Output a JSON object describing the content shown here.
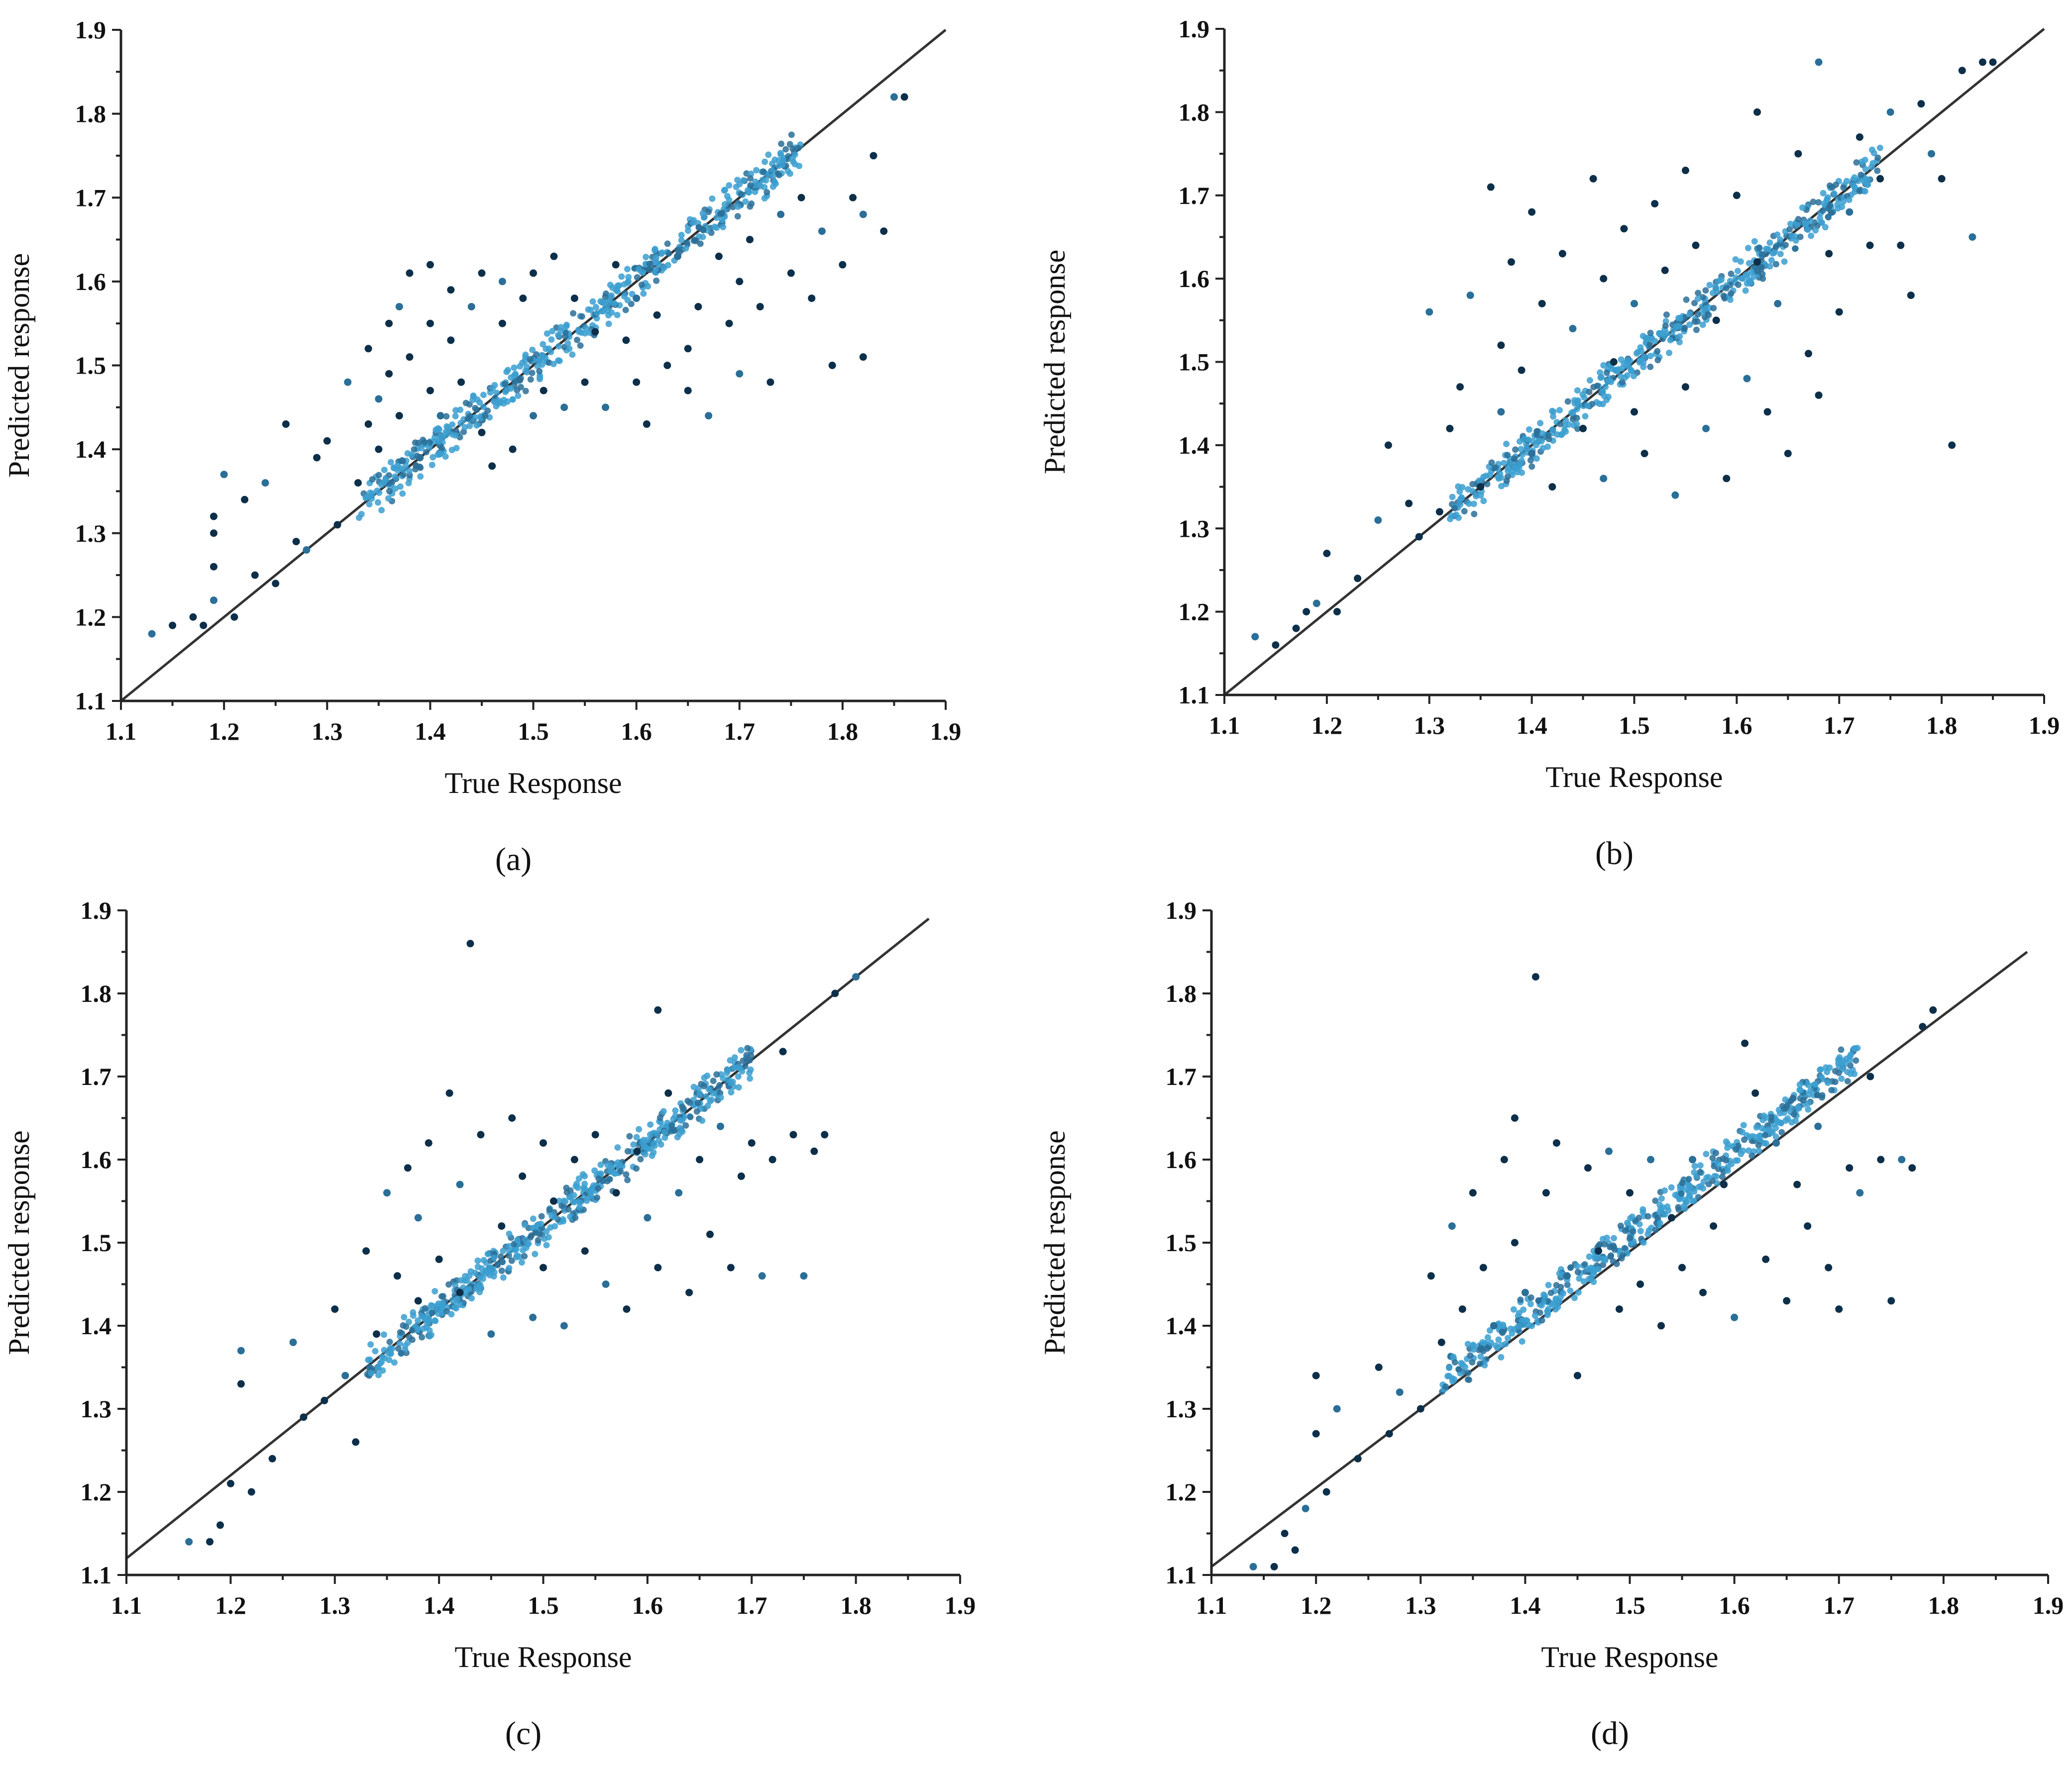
{
  "figure": {
    "panels": [
      "a",
      "b",
      "c",
      "d"
    ]
  },
  "colors": {
    "point_dark": "#0d2f4a",
    "point_mid": "#2a6f98",
    "point_light": "#3fa2cf",
    "band": "#3b9fd0",
    "reference_line": "#333333",
    "axis": "#222222"
  },
  "chart_data": [
    {
      "type": "scatter",
      "panel": "a",
      "caption": "(a)",
      "xlabel": "True Response",
      "ylabel": "Predicted response",
      "xlim": [
        1.1,
        1.9
      ],
      "ylim": [
        1.1,
        1.9
      ],
      "xticks": [
        "1.1",
        "1.2",
        "1.3",
        "1.4",
        "1.5",
        "1.6",
        "1.7",
        "1.8",
        "1.9"
      ],
      "yticks": [
        "1.1",
        "1.2",
        "1.3",
        "1.4",
        "1.5",
        "1.6",
        "1.7",
        "1.8",
        "1.9"
      ],
      "reference_line": [
        [
          1.1,
          1.1
        ],
        [
          1.9,
          1.9
        ]
      ],
      "band_range": [
        1.33,
        1.76
      ],
      "points": [
        [
          1.13,
          1.18
        ],
        [
          1.15,
          1.19
        ],
        [
          1.17,
          1.2
        ],
        [
          1.18,
          1.19
        ],
        [
          1.19,
          1.22
        ],
        [
          1.19,
          1.26
        ],
        [
          1.19,
          1.3
        ],
        [
          1.19,
          1.32
        ],
        [
          1.2,
          1.37
        ],
        [
          1.21,
          1.2
        ],
        [
          1.22,
          1.34
        ],
        [
          1.23,
          1.25
        ],
        [
          1.24,
          1.36
        ],
        [
          1.25,
          1.24
        ],
        [
          1.26,
          1.43
        ],
        [
          1.27,
          1.29
        ],
        [
          1.28,
          1.28
        ],
        [
          1.29,
          1.39
        ],
        [
          1.3,
          1.41
        ],
        [
          1.31,
          1.31
        ],
        [
          1.32,
          1.48
        ],
        [
          1.33,
          1.36
        ],
        [
          1.34,
          1.52
        ],
        [
          1.34,
          1.43
        ],
        [
          1.35,
          1.46
        ],
        [
          1.35,
          1.4
        ],
        [
          1.36,
          1.55
        ],
        [
          1.36,
          1.49
        ],
        [
          1.37,
          1.57
        ],
        [
          1.37,
          1.44
        ],
        [
          1.38,
          1.61
        ],
        [
          1.38,
          1.51
        ],
        [
          1.39,
          1.39
        ],
        [
          1.4,
          1.62
        ],
        [
          1.4,
          1.55
        ],
        [
          1.4,
          1.47
        ],
        [
          1.41,
          1.44
        ],
        [
          1.42,
          1.59
        ],
        [
          1.42,
          1.53
        ],
        [
          1.43,
          1.48
        ],
        [
          1.44,
          1.57
        ],
        [
          1.45,
          1.42
        ],
        [
          1.45,
          1.61
        ],
        [
          1.46,
          1.38
        ],
        [
          1.47,
          1.6
        ],
        [
          1.47,
          1.55
        ],
        [
          1.48,
          1.4
        ],
        [
          1.49,
          1.58
        ],
        [
          1.5,
          1.44
        ],
        [
          1.5,
          1.61
        ],
        [
          1.51,
          1.47
        ],
        [
          1.52,
          1.63
        ],
        [
          1.53,
          1.45
        ],
        [
          1.54,
          1.58
        ],
        [
          1.55,
          1.48
        ],
        [
          1.56,
          1.54
        ],
        [
          1.57,
          1.45
        ],
        [
          1.58,
          1.62
        ],
        [
          1.59,
          1.53
        ],
        [
          1.6,
          1.48
        ],
        [
          1.6,
          1.58
        ],
        [
          1.61,
          1.43
        ],
        [
          1.62,
          1.56
        ],
        [
          1.63,
          1.5
        ],
        [
          1.64,
          1.63
        ],
        [
          1.65,
          1.52
        ],
        [
          1.65,
          1.47
        ],
        [
          1.66,
          1.57
        ],
        [
          1.67,
          1.44
        ],
        [
          1.68,
          1.63
        ],
        [
          1.69,
          1.55
        ],
        [
          1.7,
          1.6
        ],
        [
          1.7,
          1.49
        ],
        [
          1.71,
          1.65
        ],
        [
          1.72,
          1.57
        ],
        [
          1.73,
          1.48
        ],
        [
          1.74,
          1.68
        ],
        [
          1.75,
          1.61
        ],
        [
          1.76,
          1.7
        ],
        [
          1.77,
          1.58
        ],
        [
          1.78,
          1.66
        ],
        [
          1.79,
          1.5
        ],
        [
          1.8,
          1.62
        ],
        [
          1.81,
          1.7
        ],
        [
          1.82,
          1.68
        ],
        [
          1.82,
          1.51
        ],
        [
          1.83,
          1.75
        ],
        [
          1.84,
          1.66
        ],
        [
          1.85,
          1.82
        ],
        [
          1.86,
          1.82
        ]
      ]
    },
    {
      "type": "scatter",
      "panel": "b",
      "caption": "(b)",
      "xlabel": "True Response",
      "ylabel": "Predicted response",
      "xlim": [
        1.1,
        1.9
      ],
      "ylim": [
        1.1,
        1.9
      ],
      "xticks": [
        "1.1",
        "1.2",
        "1.3",
        "1.4",
        "1.5",
        "1.6",
        "1.7",
        "1.8",
        "1.9"
      ],
      "yticks": [
        "1.1",
        "1.2",
        "1.3",
        "1.4",
        "1.5",
        "1.6",
        "1.7",
        "1.8",
        "1.9"
      ],
      "reference_line": [
        [
          1.1,
          1.1
        ],
        [
          1.9,
          1.9
        ]
      ],
      "band_range": [
        1.32,
        1.74
      ],
      "points": [
        [
          1.13,
          1.17
        ],
        [
          1.15,
          1.16
        ],
        [
          1.17,
          1.18
        ],
        [
          1.18,
          1.2
        ],
        [
          1.19,
          1.21
        ],
        [
          1.2,
          1.27
        ],
        [
          1.21,
          1.2
        ],
        [
          1.23,
          1.24
        ],
        [
          1.25,
          1.31
        ],
        [
          1.26,
          1.4
        ],
        [
          1.28,
          1.33
        ],
        [
          1.29,
          1.29
        ],
        [
          1.3,
          1.56
        ],
        [
          1.31,
          1.32
        ],
        [
          1.32,
          1.42
        ],
        [
          1.33,
          1.47
        ],
        [
          1.34,
          1.58
        ],
        [
          1.35,
          1.35
        ],
        [
          1.36,
          1.71
        ],
        [
          1.37,
          1.52
        ],
        [
          1.37,
          1.44
        ],
        [
          1.38,
          1.62
        ],
        [
          1.39,
          1.49
        ],
        [
          1.4,
          1.68
        ],
        [
          1.4,
          1.39
        ],
        [
          1.41,
          1.57
        ],
        [
          1.42,
          1.35
        ],
        [
          1.43,
          1.63
        ],
        [
          1.44,
          1.54
        ],
        [
          1.45,
          1.42
        ],
        [
          1.46,
          1.72
        ],
        [
          1.47,
          1.6
        ],
        [
          1.47,
          1.36
        ],
        [
          1.48,
          1.5
        ],
        [
          1.49,
          1.66
        ],
        [
          1.5,
          1.44
        ],
        [
          1.5,
          1.57
        ],
        [
          1.51,
          1.39
        ],
        [
          1.52,
          1.69
        ],
        [
          1.53,
          1.61
        ],
        [
          1.54,
          1.34
        ],
        [
          1.55,
          1.73
        ],
        [
          1.55,
          1.47
        ],
        [
          1.56,
          1.64
        ],
        [
          1.57,
          1.42
        ],
        [
          1.58,
          1.55
        ],
        [
          1.59,
          1.36
        ],
        [
          1.6,
          1.7
        ],
        [
          1.61,
          1.48
        ],
        [
          1.62,
          1.8
        ],
        [
          1.62,
          1.62
        ],
        [
          1.63,
          1.44
        ],
        [
          1.64,
          1.57
        ],
        [
          1.65,
          1.39
        ],
        [
          1.66,
          1.75
        ],
        [
          1.67,
          1.51
        ],
        [
          1.68,
          1.86
        ],
        [
          1.68,
          1.46
        ],
        [
          1.69,
          1.63
        ],
        [
          1.7,
          1.56
        ],
        [
          1.71,
          1.68
        ],
        [
          1.72,
          1.77
        ],
        [
          1.73,
          1.64
        ],
        [
          1.74,
          1.72
        ],
        [
          1.75,
          1.8
        ],
        [
          1.76,
          1.64
        ],
        [
          1.77,
          1.58
        ],
        [
          1.78,
          1.81
        ],
        [
          1.79,
          1.75
        ],
        [
          1.8,
          1.72
        ],
        [
          1.81,
          1.4
        ],
        [
          1.82,
          1.85
        ],
        [
          1.83,
          1.65
        ],
        [
          1.84,
          1.86
        ],
        [
          1.85,
          1.86
        ]
      ]
    },
    {
      "type": "scatter",
      "panel": "c",
      "caption": "(c)",
      "xlabel": "True Response",
      "ylabel": "Predicted response",
      "xlim": [
        1.1,
        1.9
      ],
      "ylim": [
        1.1,
        1.9
      ],
      "xticks": [
        "1.1",
        "1.2",
        "1.3",
        "1.4",
        "1.5",
        "1.6",
        "1.7",
        "1.8",
        "1.9"
      ],
      "yticks": [
        "1.1",
        "1.2",
        "1.3",
        "1.4",
        "1.5",
        "1.6",
        "1.7",
        "1.8",
        "1.9"
      ],
      "reference_line": [
        [
          1.1,
          1.12
        ],
        [
          1.87,
          1.89
        ]
      ],
      "band_range": [
        1.33,
        1.7
      ],
      "points": [
        [
          1.16,
          1.14
        ],
        [
          1.18,
          1.14
        ],
        [
          1.19,
          1.16
        ],
        [
          1.2,
          1.21
        ],
        [
          1.21,
          1.37
        ],
        [
          1.21,
          1.33
        ],
        [
          1.22,
          1.2
        ],
        [
          1.24,
          1.24
        ],
        [
          1.26,
          1.38
        ],
        [
          1.27,
          1.29
        ],
        [
          1.29,
          1.31
        ],
        [
          1.3,
          1.42
        ],
        [
          1.31,
          1.34
        ],
        [
          1.32,
          1.26
        ],
        [
          1.33,
          1.49
        ],
        [
          1.34,
          1.39
        ],
        [
          1.35,
          1.56
        ],
        [
          1.36,
          1.46
        ],
        [
          1.37,
          1.59
        ],
        [
          1.38,
          1.43
        ],
        [
          1.38,
          1.53
        ],
        [
          1.39,
          1.62
        ],
        [
          1.4,
          1.48
        ],
        [
          1.41,
          1.68
        ],
        [
          1.42,
          1.57
        ],
        [
          1.42,
          1.44
        ],
        [
          1.43,
          1.86
        ],
        [
          1.44,
          1.63
        ],
        [
          1.45,
          1.39
        ],
        [
          1.46,
          1.52
        ],
        [
          1.47,
          1.65
        ],
        [
          1.48,
          1.58
        ],
        [
          1.49,
          1.41
        ],
        [
          1.5,
          1.62
        ],
        [
          1.5,
          1.47
        ],
        [
          1.51,
          1.55
        ],
        [
          1.52,
          1.4
        ],
        [
          1.53,
          1.6
        ],
        [
          1.54,
          1.49
        ],
        [
          1.55,
          1.63
        ],
        [
          1.56,
          1.45
        ],
        [
          1.57,
          1.56
        ],
        [
          1.58,
          1.42
        ],
        [
          1.59,
          1.61
        ],
        [
          1.6,
          1.53
        ],
        [
          1.61,
          1.78
        ],
        [
          1.61,
          1.47
        ],
        [
          1.62,
          1.68
        ],
        [
          1.63,
          1.56
        ],
        [
          1.64,
          1.44
        ],
        [
          1.65,
          1.6
        ],
        [
          1.66,
          1.51
        ],
        [
          1.67,
          1.64
        ],
        [
          1.68,
          1.47
        ],
        [
          1.69,
          1.58
        ],
        [
          1.7,
          1.62
        ],
        [
          1.71,
          1.46
        ],
        [
          1.72,
          1.6
        ],
        [
          1.73,
          1.73
        ],
        [
          1.74,
          1.63
        ],
        [
          1.75,
          1.46
        ],
        [
          1.76,
          1.61
        ],
        [
          1.77,
          1.63
        ],
        [
          1.78,
          1.8
        ],
        [
          1.8,
          1.82
        ]
      ]
    },
    {
      "type": "scatter",
      "panel": "d",
      "caption": "(d)",
      "xlabel": "True Response",
      "ylabel": "Predicted response",
      "xlim": [
        1.1,
        1.9
      ],
      "ylim": [
        1.1,
        1.9
      ],
      "xticks": [
        "1.1",
        "1.2",
        "1.3",
        "1.4",
        "1.5",
        "1.6",
        "1.7",
        "1.8",
        "1.9"
      ],
      "yticks": [
        "1.1",
        "1.2",
        "1.3",
        "1.4",
        "1.5",
        "1.6",
        "1.7",
        "1.8",
        "1.9"
      ],
      "reference_line": [
        [
          1.1,
          1.11
        ],
        [
          1.88,
          1.85
        ]
      ],
      "band_range": [
        1.32,
        1.72
      ],
      "points": [
        [
          1.14,
          1.11
        ],
        [
          1.16,
          1.11
        ],
        [
          1.17,
          1.15
        ],
        [
          1.18,
          1.13
        ],
        [
          1.19,
          1.18
        ],
        [
          1.2,
          1.34
        ],
        [
          1.2,
          1.27
        ],
        [
          1.21,
          1.2
        ],
        [
          1.22,
          1.3
        ],
        [
          1.24,
          1.24
        ],
        [
          1.26,
          1.35
        ],
        [
          1.27,
          1.27
        ],
        [
          1.28,
          1.32
        ],
        [
          1.3,
          1.3
        ],
        [
          1.31,
          1.46
        ],
        [
          1.32,
          1.38
        ],
        [
          1.33,
          1.52
        ],
        [
          1.34,
          1.42
        ],
        [
          1.35,
          1.56
        ],
        [
          1.36,
          1.47
        ],
        [
          1.37,
          1.4
        ],
        [
          1.38,
          1.6
        ],
        [
          1.39,
          1.65
        ],
        [
          1.39,
          1.5
        ],
        [
          1.4,
          1.44
        ],
        [
          1.41,
          1.82
        ],
        [
          1.42,
          1.56
        ],
        [
          1.43,
          1.62
        ],
        [
          1.44,
          1.46
        ],
        [
          1.45,
          1.34
        ],
        [
          1.46,
          1.59
        ],
        [
          1.47,
          1.49
        ],
        [
          1.48,
          1.61
        ],
        [
          1.49,
          1.42
        ],
        [
          1.5,
          1.56
        ],
        [
          1.51,
          1.45
        ],
        [
          1.52,
          1.6
        ],
        [
          1.53,
          1.4
        ],
        [
          1.54,
          1.53
        ],
        [
          1.55,
          1.47
        ],
        [
          1.56,
          1.6
        ],
        [
          1.57,
          1.44
        ],
        [
          1.58,
          1.52
        ],
        [
          1.59,
          1.57
        ],
        [
          1.6,
          1.41
        ],
        [
          1.61,
          1.74
        ],
        [
          1.62,
          1.68
        ],
        [
          1.63,
          1.48
        ],
        [
          1.64,
          1.62
        ],
        [
          1.65,
          1.43
        ],
        [
          1.66,
          1.57
        ],
        [
          1.67,
          1.52
        ],
        [
          1.68,
          1.64
        ],
        [
          1.69,
          1.47
        ],
        [
          1.7,
          1.42
        ],
        [
          1.71,
          1.59
        ],
        [
          1.72,
          1.56
        ],
        [
          1.73,
          1.7
        ],
        [
          1.74,
          1.6
        ],
        [
          1.75,
          1.43
        ],
        [
          1.76,
          1.6
        ],
        [
          1.77,
          1.59
        ],
        [
          1.78,
          1.76
        ],
        [
          1.79,
          1.78
        ]
      ]
    }
  ]
}
